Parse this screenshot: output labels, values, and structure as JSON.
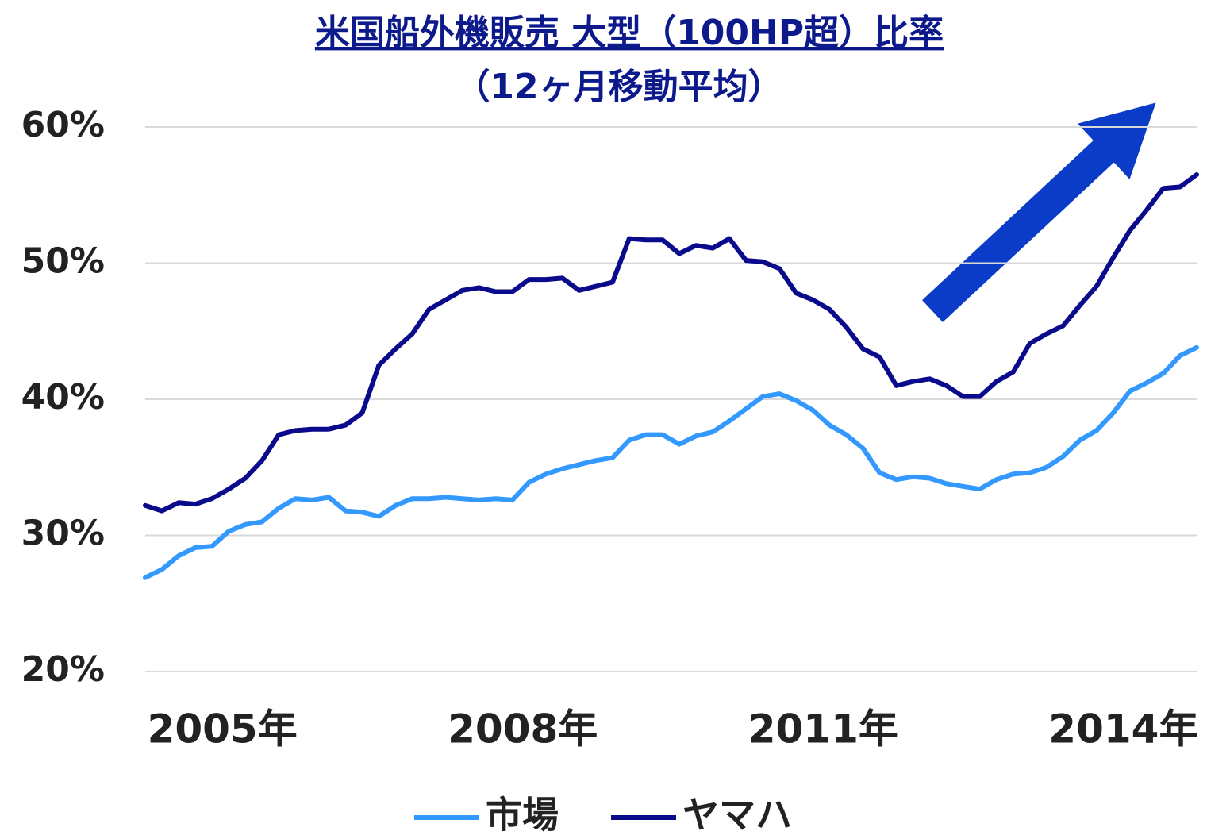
{
  "chart_data": {
    "type": "line",
    "title": "米国船外機販売 大型（100HP超）比率",
    "subtitle": "（12ヶ月移動平均）",
    "categories": [
      null,
      null,
      null,
      null,
      null,
      "2005年",
      null,
      null,
      null,
      null,
      null,
      null,
      null,
      null,
      null,
      null,
      null,
      null,
      null,
      null,
      null,
      null,
      null,
      "2008年",
      null,
      null,
      null,
      null,
      null,
      null,
      null,
      null,
      null,
      null,
      null,
      null,
      null,
      null,
      null,
      null,
      null,
      "2011年",
      null,
      null,
      null,
      null,
      null,
      null,
      null,
      null,
      null,
      null,
      null,
      null,
      null,
      null,
      null,
      null,
      null,
      "2014年",
      null,
      null,
      null,
      null
    ],
    "series": [
      {
        "name": "市場",
        "color": "#3399ff",
        "values": [
          26.9,
          27.5,
          28.5,
          29.1,
          29.2,
          30.3,
          30.8,
          31.0,
          32.0,
          32.7,
          32.6,
          32.8,
          31.8,
          31.7,
          31.4,
          32.2,
          32.7,
          32.7,
          32.8,
          32.7,
          32.6,
          32.7,
          32.6,
          33.9,
          34.5,
          34.9,
          35.2,
          35.5,
          35.7,
          37.0,
          37.4,
          37.4,
          36.7,
          37.3,
          37.6,
          38.4,
          39.3,
          40.2,
          40.4,
          39.9,
          39.2,
          38.1,
          37.4,
          36.4,
          34.6,
          34.1,
          34.3,
          34.2,
          33.8,
          33.6,
          33.4,
          34.1,
          34.5,
          34.6,
          35.0,
          35.8,
          37.0,
          37.7,
          39.0,
          40.6,
          41.2,
          41.9,
          43.2,
          43.8
        ]
      },
      {
        "name": "ヤマハ",
        "color": "#0a0a8c",
        "values": [
          32.2,
          31.8,
          32.4,
          32.3,
          32.7,
          33.4,
          34.2,
          35.5,
          37.4,
          37.7,
          37.8,
          37.8,
          38.1,
          39.0,
          42.5,
          43.7,
          44.8,
          46.6,
          47.3,
          48.0,
          48.2,
          47.9,
          47.9,
          48.8,
          48.8,
          48.9,
          48.0,
          48.3,
          48.6,
          51.8,
          51.7,
          51.7,
          50.7,
          51.3,
          51.1,
          51.8,
          50.2,
          50.1,
          49.6,
          47.8,
          47.3,
          46.6,
          45.3,
          43.7,
          43.1,
          41.0,
          41.3,
          41.5,
          41.0,
          40.2,
          40.2,
          41.3,
          42.0,
          44.1,
          44.8,
          45.4,
          46.9,
          48.3,
          50.4,
          52.4,
          53.9,
          55.5,
          55.6,
          56.5
        ]
      }
    ],
    "ylim": [
      20,
      60
    ],
    "yticks": [
      {
        "value": 20,
        "label": "20%"
      },
      {
        "value": 30,
        "label": "30%"
      },
      {
        "value": 40,
        "label": "40%"
      },
      {
        "value": 50,
        "label": "50%"
      },
      {
        "value": 60,
        "label": "60%"
      }
    ],
    "grid": true
  }
}
